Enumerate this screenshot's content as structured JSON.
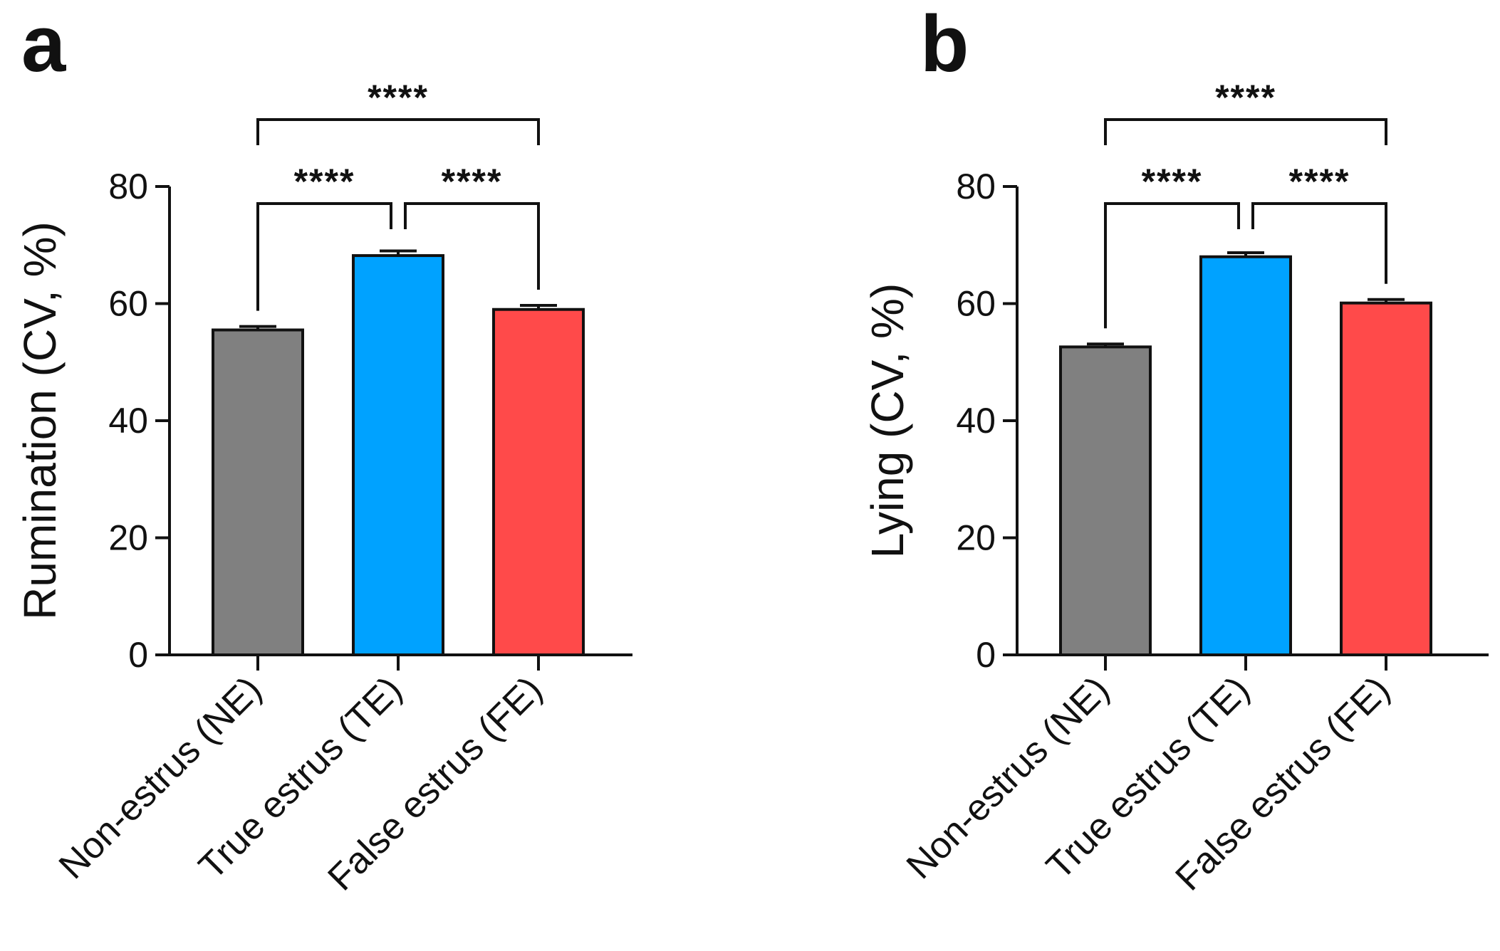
{
  "colors": {
    "axis": "#111111",
    "bar_stroke": "#111111",
    "series": [
      "#808080",
      "#00a2ff",
      "#ff4a4a"
    ]
  },
  "chart_data": [
    {
      "type": "bar",
      "panel_label": "a",
      "ylabel": "Rumination (CV, %)",
      "xlabel": "",
      "categories": [
        "Non-estrus (NE)",
        "True estrus (TE)",
        "False estrus (FE)"
      ],
      "values": [
        55.5,
        68.2,
        59.0
      ],
      "error": [
        0.6,
        0.8,
        0.7
      ],
      "ylim": [
        0,
        80
      ],
      "yticks": [
        0,
        20,
        40,
        60,
        80
      ],
      "significance": [
        {
          "from": 0,
          "to": 1,
          "label": "****"
        },
        {
          "from": 1,
          "to": 2,
          "label": "****"
        },
        {
          "from": 0,
          "to": 2,
          "label": "****"
        }
      ]
    },
    {
      "type": "bar",
      "panel_label": "b",
      "ylabel": "Lying (CV, %)",
      "xlabel": "",
      "categories": [
        "Non-estrus (NE)",
        "True estrus (TE)",
        "False estrus (FE)"
      ],
      "values": [
        52.6,
        68.0,
        60.1
      ],
      "error": [
        0.5,
        0.7,
        0.6
      ],
      "ylim": [
        0,
        80
      ],
      "yticks": [
        0,
        20,
        40,
        60,
        80
      ],
      "significance": [
        {
          "from": 0,
          "to": 1,
          "label": "****"
        },
        {
          "from": 1,
          "to": 2,
          "label": "****"
        },
        {
          "from": 0,
          "to": 2,
          "label": "****"
        }
      ]
    }
  ]
}
